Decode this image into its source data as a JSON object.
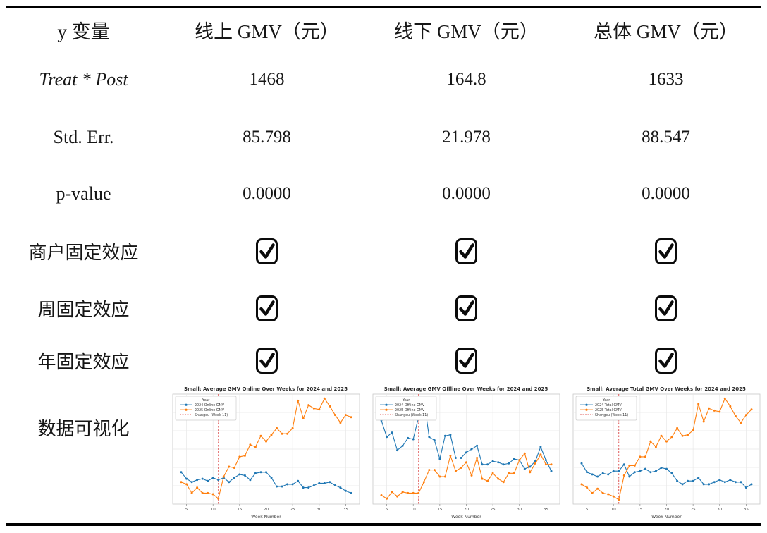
{
  "table": {
    "header": [
      "y 变量",
      "线上 GMV（元）",
      "线下 GMV（元）",
      "总体 GMV（元）"
    ],
    "rows": [
      {
        "label": "Treat * Post",
        "values": [
          "1468",
          "164.8",
          "1633"
        ]
      },
      {
        "label": "Std. Err.",
        "values": [
          "85.798",
          "21.978",
          "88.547"
        ]
      },
      {
        "label": "p-value",
        "values": [
          "0.0000",
          "0.0000",
          "0.0000"
        ]
      },
      {
        "label": "商户固定效应",
        "checked": [
          true,
          true,
          true
        ]
      },
      {
        "label": "周固定效应",
        "checked": [
          true,
          true,
          true
        ]
      },
      {
        "label": "年固定效应",
        "checked": [
          true,
          true,
          true
        ]
      },
      {
        "label": "数据可视化"
      }
    ],
    "checkbox_symbol": "☑",
    "checkbox_icon": "checkbox-checked"
  },
  "chart_data": [
    {
      "type": "line",
      "title": "Small: Average GMV Online Over Weeks for 2024 and 2025",
      "xlabel": "Week Number",
      "legend_title": "Year",
      "legend_position": "top-left",
      "grid": true,
      "x_ticks": [
        5,
        10,
        15,
        20,
        25,
        30,
        35
      ],
      "x": [
        4,
        5,
        6,
        7,
        8,
        9,
        10,
        11,
        12,
        13,
        14,
        15,
        16,
        17,
        18,
        19,
        20,
        21,
        22,
        23,
        24,
        25,
        26,
        27,
        28,
        29,
        30,
        31,
        32,
        33,
        34,
        35,
        36
      ],
      "ylim": [
        0,
        100
      ],
      "series": [
        {
          "name": "2024 Online GMV",
          "color": "#1f77b4",
          "values": [
            29,
            23,
            20,
            22,
            23,
            21,
            24,
            22,
            24,
            20,
            24,
            27,
            26,
            22,
            28,
            29,
            29,
            24,
            16,
            16,
            18,
            18,
            21,
            15,
            15,
            17,
            19,
            19,
            20,
            17,
            15,
            12,
            10
          ]
        },
        {
          "name": "2025 Online GMV",
          "color": "#ff7f0e",
          "values": [
            20,
            18,
            10,
            15,
            10,
            10,
            9,
            5,
            25,
            34,
            33,
            43,
            44,
            54,
            52,
            62,
            57,
            63,
            69,
            64,
            64,
            69,
            94,
            78,
            90,
            87,
            86,
            96,
            89,
            81,
            74,
            81,
            79
          ]
        }
      ],
      "vline": {
        "label": "Shangou (Week 11)",
        "x": 11,
        "color": "#d62728",
        "style": "dashed"
      }
    },
    {
      "type": "line",
      "title": "Small: Average GMV Offline Over Weeks for 2024 and 2025",
      "xlabel": "Week Number",
      "legend_title": "Year",
      "legend_position": "top-left",
      "grid": true,
      "x_ticks": [
        5,
        10,
        15,
        20,
        25,
        30,
        35
      ],
      "x": [
        4,
        5,
        6,
        7,
        8,
        9,
        10,
        11,
        12,
        13,
        14,
        15,
        16,
        17,
        18,
        19,
        20,
        21,
        22,
        23,
        24,
        25,
        26,
        27,
        28,
        29,
        30,
        31,
        32,
        33,
        34,
        35,
        36
      ],
      "ylim": [
        0,
        100
      ],
      "series": [
        {
          "name": "2024 Offline GMV",
          "color": "#1f77b4",
          "values": [
            76,
            61,
            65,
            49,
            53,
            60,
            59,
            79,
            95,
            61,
            58,
            41,
            62,
            63,
            42,
            42,
            47,
            50,
            53,
            36,
            36,
            39,
            38,
            36,
            37,
            41,
            40,
            32,
            34,
            39,
            52,
            40,
            30
          ]
        },
        {
          "name": "2025 Offline GMV",
          "color": "#ff7f0e",
          "values": [
            8,
            5,
            11,
            7,
            11,
            10,
            10,
            10,
            20,
            31,
            31,
            25,
            25,
            44,
            30,
            33,
            38,
            26,
            42,
            23,
            21,
            28,
            23,
            20,
            28,
            28,
            40,
            46,
            29,
            37,
            45,
            36,
            36
          ]
        }
      ],
      "vline": {
        "label": "Shangou (Week 11)",
        "x": 11,
        "color": "#d62728",
        "style": "dashed"
      }
    },
    {
      "type": "line",
      "title": "Small: Average Total GMV Over Weeks for 2024 and 2025",
      "xlabel": "Week Number",
      "legend_title": "Year",
      "legend_position": "top-left",
      "grid": true,
      "x_ticks": [
        5,
        10,
        15,
        20,
        25,
        30,
        35
      ],
      "x": [
        4,
        5,
        6,
        7,
        8,
        9,
        10,
        11,
        12,
        13,
        14,
        15,
        16,
        17,
        18,
        19,
        20,
        21,
        22,
        23,
        24,
        25,
        26,
        27,
        28,
        29,
        30,
        31,
        32,
        33,
        34,
        35,
        36
      ],
      "ylim": [
        0,
        100
      ],
      "series": [
        {
          "name": "2024 Total GMV",
          "color": "#1f77b4",
          "values": [
            37,
            29,
            27,
            25,
            28,
            27,
            30,
            30,
            36,
            25,
            29,
            30,
            32,
            29,
            30,
            33,
            32,
            28,
            21,
            18,
            21,
            21,
            24,
            18,
            18,
            20,
            22,
            20,
            22,
            20,
            20,
            15,
            18
          ]
        },
        {
          "name": "2025 Total GMV",
          "color": "#ff7f0e",
          "values": [
            18,
            15,
            10,
            14,
            10,
            9,
            7,
            4,
            26,
            35,
            35,
            43,
            43,
            57,
            52,
            62,
            57,
            61,
            69,
            62,
            63,
            67,
            91,
            75,
            87,
            85,
            84,
            96,
            89,
            80,
            74,
            81,
            86
          ]
        }
      ],
      "vline": {
        "label": "Shangou (Week 11)",
        "x": 11,
        "color": "#d62728",
        "style": "dashed"
      }
    }
  ]
}
